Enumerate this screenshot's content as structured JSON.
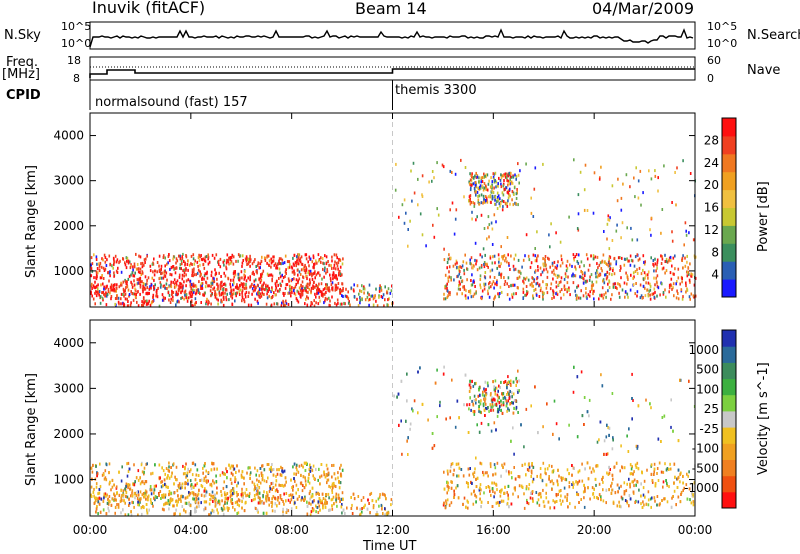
{
  "header": {
    "station": "Inuvik (fitACF)",
    "beam": "Beam 14",
    "date": "04/Mar/2009"
  },
  "side_labels": {
    "nsky": "N.Sky",
    "nsearch": "N.Search",
    "freq": "Freq.",
    "freq_unit": "[MHz]",
    "cpid": "CPID",
    "nave": "Nave",
    "nsky_top": "10^5",
    "nsky_bottom": "10^0",
    "nsearch_top": "10^5",
    "nsearch_bottom": "10^0",
    "freq_top": "18",
    "freq_bottom": "8",
    "nave_top": "60",
    "nave_bottom": "0"
  },
  "cpid_segments": [
    {
      "label": "normalsound (fast) 157",
      "start_hour": 0
    },
    {
      "label": "themis 3300",
      "start_hour": 12
    }
  ],
  "chart_data": [
    {
      "type": "heatmap",
      "name": "power",
      "ylabel": "Slant Range [km]",
      "yticks": [
        1000,
        2000,
        3000,
        4000
      ],
      "ylim": [
        200,
        4500
      ],
      "xlim": [
        0,
        24
      ],
      "colorbar": {
        "label": "Power [dB]",
        "ticks": [
          "4",
          "8",
          "12",
          "16",
          "20",
          "24",
          "28"
        ],
        "colors": [
          "#1a1aff",
          "#2a5fb4",
          "#3b8f5e",
          "#6aa84f",
          "#c8c832",
          "#f0c040",
          "#f0a020",
          "#f07820",
          "#f04020",
          "#ff1010"
        ]
      }
    },
    {
      "type": "heatmap",
      "name": "velocity",
      "ylabel": "Slant Range [km]",
      "yticks": [
        1000,
        2000,
        3000,
        4000
      ],
      "ylim": [
        200,
        4500
      ],
      "xlim": [
        0,
        24
      ],
      "xlabel": "Time UT",
      "xticks": [
        "00:00",
        "04:00",
        "08:00",
        "12:00",
        "16:00",
        "20:00",
        "00:00"
      ],
      "colorbar": {
        "label": "Velocity [m s^-1]",
        "ticks": [
          "1000",
          "500",
          "100",
          "25",
          "-25",
          "-100",
          "-500",
          "-1000"
        ],
        "colors": [
          "#2030b0",
          "#2a6a9a",
          "#3c8c5c",
          "#3cb040",
          "#7cd040",
          "#c8c8c8",
          "#f0c020",
          "#f0a020",
          "#f08020",
          "#f05010",
          "#ff1010"
        ]
      }
    }
  ]
}
